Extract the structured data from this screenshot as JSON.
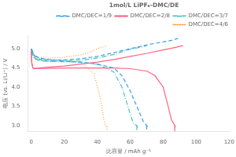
{
  "chart_data": {
    "type": "line",
    "title": "1mol/L LiPF₆-DMC/DE",
    "xlabel": "比容量 / mAh g⁻¹",
    "ylabel": "电压 (vs. Li/Li⁺) / V",
    "xlim": [
      -2,
      120
    ],
    "ylim": [
      2.85,
      5.35
    ],
    "xticks": [
      0,
      20,
      40,
      60,
      80,
      100,
      120
    ],
    "yticks": [
      {
        "value": 3.0,
        "label": "3.0"
      },
      3.5,
      {
        "value": 4.0,
        "label": "4.0"
      },
      4.5,
      {
        "value": 5.0,
        "label": "5.0"
      }
    ],
    "grid": false,
    "legend": "upper right",
    "series": [
      {
        "name": "DMC/DEC=1/9",
        "line_style": "dashed",
        "segments": [
          {
            "x": [
              0,
              2,
              5,
              10,
              20,
              30,
              40,
              50,
              60,
              70,
              80,
              85,
              89
            ],
            "values": [
              5.0,
              4.82,
              4.73,
              4.7,
              4.71,
              4.74,
              4.8,
              4.9,
              5.0,
              5.1,
              5.18,
              5.22,
              5.27
            ]
          },
          {
            "x": [
              0,
              2,
              5,
              10,
              20,
              30,
              40,
              50,
              55,
              60,
              65,
              68,
              70,
              70.5
            ],
            "values": [
              4.94,
              4.82,
              4.76,
              4.72,
              4.68,
              4.65,
              4.6,
              4.5,
              4.3,
              3.9,
              3.4,
              3.1,
              3.0,
              2.95
            ]
          },
          {
            "x": [
              70,
              70
            ],
            "values": [
              3.0,
              2.85
            ]
          }
        ]
      },
      {
        "name": "DMC/DEC=2/8",
        "line_style": "solid",
        "segments": [
          {
            "x": [
              0,
              0.3,
              1,
              2,
              5,
              10,
              20,
              30,
              40,
              50,
              60,
              70,
              80,
              88,
              90,
              92
            ],
            "values": [
              5.0,
              4.65,
              4.5,
              4.48,
              4.5,
              4.52,
              4.55,
              4.6,
              4.65,
              4.72,
              4.8,
              4.88,
              4.97,
              5.04,
              5.06,
              5.08
            ]
          },
          {
            "x": [
              0,
              0.3,
              1,
              2,
              5,
              10,
              20,
              30,
              40,
              50,
              60,
              70,
              75,
              80,
              83,
              85,
              87,
              87.5
            ],
            "values": [
              4.94,
              4.62,
              4.5,
              4.49,
              4.49,
              4.49,
              4.5,
              4.5,
              4.5,
              4.5,
              4.48,
              4.42,
              4.3,
              4.0,
              3.5,
              3.15,
              3.0,
              2.95
            ]
          },
          {
            "x": [
              87,
              87
            ],
            "values": [
              3.0,
              2.85
            ]
          }
        ]
      },
      {
        "name": "DMC/DEC=3/7",
        "line_style": "dashdot",
        "segments": [
          {
            "x": [
              0,
              1,
              2,
              5,
              10,
              20,
              30,
              40,
              50,
              55,
              60,
              65,
              68,
              70
            ],
            "values": [
              5.0,
              4.88,
              4.76,
              4.7,
              4.67,
              4.68,
              4.7,
              4.76,
              4.85,
              4.92,
              4.99,
              5.03,
              5.06,
              5.08
            ]
          },
          {
            "x": [
              0,
              1,
              2,
              5,
              10,
              20,
              30,
              40,
              50,
              55,
              60,
              62,
              64,
              64.5
            ],
            "values": [
              4.94,
              4.82,
              4.74,
              4.69,
              4.67,
              4.66,
              4.65,
              4.6,
              4.4,
              4.0,
              3.3,
              3.05,
              3.0,
              2.95
            ]
          },
          {
            "x": [
              64,
              64
            ],
            "values": [
              3.0,
              2.85
            ]
          }
        ]
      },
      {
        "name": "DMC/DEC=4/6",
        "line_style": "dotted",
        "segments": [
          {
            "x": [
              0,
              1,
              2,
              5,
              10,
              20,
              30,
              35,
              38,
              40,
              42,
              44,
              46
            ],
            "values": [
              5.0,
              4.9,
              4.82,
              4.77,
              4.75,
              4.78,
              4.84,
              4.9,
              4.96,
              5.0,
              5.03,
              5.05,
              5.07
            ]
          },
          {
            "x": [
              0,
              1,
              2,
              5,
              10,
              20,
              30,
              38,
              42,
              44,
              45,
              46,
              46.5
            ],
            "values": [
              4.94,
              4.86,
              4.78,
              4.73,
              4.72,
              4.7,
              4.65,
              4.35,
              3.7,
              3.15,
              3.0,
              2.97,
              2.95
            ]
          },
          {
            "x": [
              46,
              46
            ],
            "values": [
              2.97,
              2.85
            ]
          }
        ]
      }
    ]
  }
}
